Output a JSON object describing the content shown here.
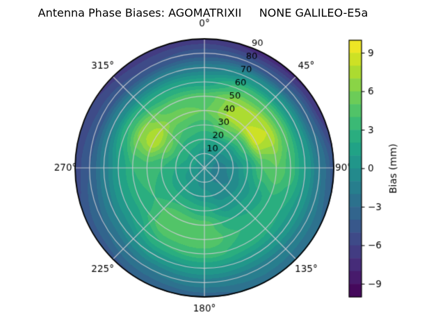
{
  "title": "Antenna Phase Biases: AGOMATRIXII     NONE GALILEO-E5a",
  "chart_data": {
    "type": "heatmap",
    "projection": "polar",
    "title": "Antenna Phase Biases: AGOMATRIXII     NONE GALILEO-E5a",
    "angular_axis": {
      "labels": [
        "0°",
        "45°",
        "90°",
        "135°",
        "180°",
        "225°",
        "270°",
        "315°"
      ],
      "degrees": [
        0,
        45,
        90,
        135,
        180,
        225,
        270,
        315
      ],
      "direction": "clockwise",
      "zero_location": "top"
    },
    "radial_axis": {
      "ticks": [
        "10",
        "20",
        "30",
        "40",
        "50",
        "60",
        "70",
        "80",
        "90"
      ],
      "tick_values": [
        10,
        20,
        30,
        40,
        50,
        60,
        70,
        80,
        90
      ],
      "max": 90,
      "label_angle_deg": 23
    },
    "colormap": "viridis",
    "levels": {
      "min": -10,
      "max": 10,
      "step": 1
    },
    "colorbar": {
      "label": "Bias (mm)",
      "tick_labels": [
        "9",
        "6",
        "3",
        "0",
        "−3",
        "−6",
        "−9"
      ],
      "tick_values": [
        9,
        6,
        3,
        0,
        -3,
        -6,
        -9
      ]
    },
    "grid_style": {
      "grid_line_color": "rgba(203,203,210,0.9)",
      "outline_color": "#000000",
      "text_color": "#000000"
    },
    "bias_grid": {
      "azimuth_deg": [
        0,
        30,
        60,
        90,
        120,
        150,
        180,
        210,
        240,
        270,
        300,
        330
      ],
      "zenith_deg": [
        0,
        10,
        20,
        30,
        40,
        50,
        60,
        70,
        80,
        90
      ],
      "values_mm": [
        [
          -0.5,
          0.5,
          2.0,
          3.5,
          5.0,
          4.5,
          1.5,
          -1.5,
          -4.5,
          -6.5
        ],
        [
          -0.5,
          0.0,
          1.5,
          5.0,
          7.5,
          7.0,
          4.0,
          0.0,
          -4.5,
          -7.5
        ],
        [
          -0.5,
          -1.0,
          0.5,
          3.5,
          8.5,
          8.0,
          4.5,
          0.5,
          -3.5,
          -7.0
        ],
        [
          -0.5,
          -1.5,
          -0.5,
          1.5,
          4.0,
          5.0,
          3.5,
          1.0,
          -2.0,
          -4.5
        ],
        [
          -0.5,
          -1.5,
          -1.0,
          0.5,
          1.5,
          2.5,
          2.0,
          0.5,
          -1.5,
          -3.0
        ],
        [
          -0.5,
          -1.0,
          -0.5,
          0.5,
          2.0,
          3.0,
          2.5,
          0.5,
          -1.5,
          -2.5
        ],
        [
          -0.5,
          -0.5,
          0.5,
          2.5,
          4.5,
          5.0,
          3.5,
          1.0,
          -1.5,
          -3.5
        ],
        [
          -0.5,
          0.0,
          1.0,
          3.0,
          5.0,
          5.0,
          3.0,
          0.5,
          -2.0,
          -4.0
        ],
        [
          -0.5,
          0.5,
          1.5,
          2.5,
          3.0,
          2.5,
          1.0,
          -1.0,
          -3.0,
          -4.5
        ],
        [
          -0.5,
          1.0,
          2.0,
          3.0,
          3.5,
          3.0,
          1.0,
          -1.5,
          -4.0,
          -5.5
        ],
        [
          -0.5,
          1.5,
          3.0,
          5.5,
          8.0,
          6.5,
          3.0,
          -1.0,
          -4.5,
          -6.0
        ],
        [
          -0.5,
          1.0,
          2.5,
          4.0,
          5.5,
          4.5,
          2.0,
          -1.5,
          -5.0,
          -6.5
        ]
      ]
    }
  }
}
